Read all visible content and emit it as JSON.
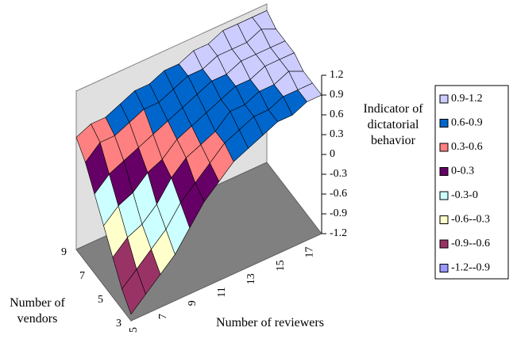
{
  "chart_data": {
    "type": "surface",
    "x_label": "Number of reviewers",
    "y_label": "Number of vendors",
    "z_label": "Indicator of dictatorial behavior",
    "x": [
      5,
      null,
      7,
      null,
      9,
      null,
      11,
      null,
      13,
      null,
      15,
      null,
      17,
      null
    ],
    "y": [
      3,
      null,
      5,
      null,
      7,
      null,
      9
    ],
    "zlim": [
      -1.2,
      1.2
    ],
    "zticks": [
      1.2,
      0.9,
      0.6,
      0.3,
      0,
      -0.3,
      -0.6,
      -0.9,
      -1.2
    ],
    "values": [
      [
        -1.1,
        -0.9,
        -0.7,
        -0.5,
        -0.2,
        0.1,
        0.3,
        0.5,
        0.6,
        0.7,
        0.8,
        0.8,
        0.9,
        0.9
      ],
      [
        -0.9,
        -0.7,
        -0.5,
        -0.3,
        0,
        0.2,
        0.4,
        0.6,
        0.7,
        0.8,
        0.8,
        0.9,
        0.9,
        0.9
      ],
      [
        -0.6,
        -0.4,
        -0.3,
        -0.1,
        0.2,
        0.4,
        0.5,
        0.6,
        0.8,
        0.8,
        0.9,
        0.9,
        1.0,
        0.9
      ],
      [
        -0.3,
        -0.1,
        0,
        0.2,
        0.3,
        0.5,
        0.6,
        0.7,
        0.8,
        0.9,
        0.9,
        1.0,
        1.0,
        1.0
      ],
      [
        0,
        0.2,
        0.3,
        0.4,
        0.5,
        0.6,
        0.7,
        0.8,
        0.9,
        0.9,
        1.0,
        1.0,
        1.0,
        1.0
      ],
      [
        0.3,
        0.5,
        0.5,
        0.6,
        0.7,
        0.7,
        0.8,
        0.9,
        0.9,
        1.0,
        1.0,
        1.0,
        1.1,
        1.0
      ],
      [
        0.5,
        0.6,
        0.6,
        0.7,
        0.8,
        0.8,
        0.9,
        0.9,
        1.0,
        1.0,
        1.1,
        1.1,
        1.1,
        1.1
      ]
    ],
    "legend": [
      {
        "name": "0.9-1.2",
        "color": "#ccccff"
      },
      {
        "name": "0.6-0.9",
        "color": "#0066cc"
      },
      {
        "name": "0.3-0.6",
        "color": "#ff8080"
      },
      {
        "name": "0-0.3",
        "color": "#660066"
      },
      {
        "name": "-0.3-0",
        "color": "#ccffff"
      },
      {
        "name": "-0.6--0.3",
        "color": "#ffffcc"
      },
      {
        "name": "-0.9--0.6",
        "color": "#993366"
      },
      {
        "name": "-1.2--0.9",
        "color": "#9999ff"
      }
    ]
  }
}
